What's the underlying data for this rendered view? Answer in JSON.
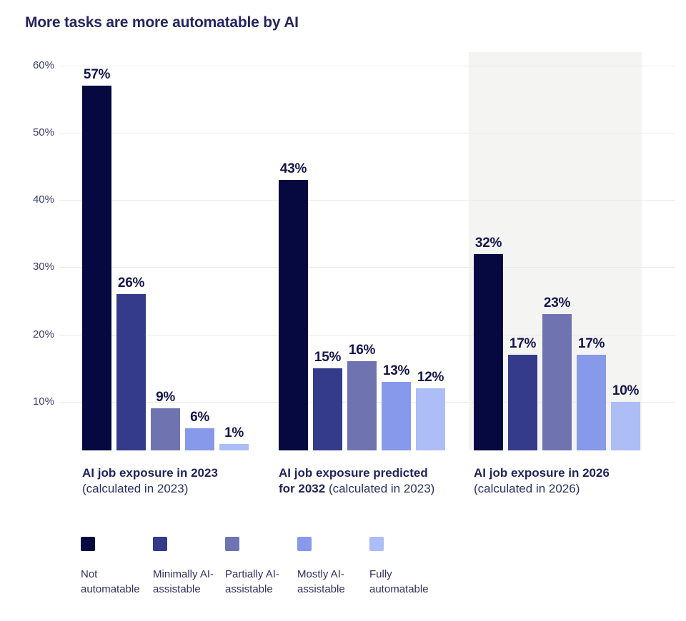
{
  "title": "More tasks are more automatable by AI",
  "colors": {
    "not_automatable": "#06093f",
    "minimally_ai_assistable": "#333b8a",
    "partially_ai_assistable": "#6f74b0",
    "mostly_ai_assistable": "#8699ea",
    "fully_automatable": "#adbdf5",
    "highlight_band": "#f4f4f2",
    "gridline": "#e9e9e7",
    "title_text": "#26265f",
    "value_label_text": "#15154b",
    "tick_text": "#3e3e66"
  },
  "chart_data": {
    "type": "bar",
    "title": "More tasks are more automatable by AI",
    "xlabel": "",
    "ylabel": "",
    "ylim": [
      0,
      62
    ],
    "grid": true,
    "legend_position": "bottom",
    "yticks": [
      "10%",
      "20%",
      "30%",
      "40%",
      "50%",
      "60%"
    ],
    "categories": [
      "Not automatable",
      "Minimally AI-assistable",
      "Partially AI-assistable",
      "Mostly AI-assistable",
      "Fully automatable"
    ],
    "series_colors": [
      "#06093f",
      "#333b8a",
      "#6f74b0",
      "#8699ea",
      "#adbdf5"
    ],
    "groups": [
      {
        "caption_lines": [
          {
            "bold": "AI job exposure in 2023",
            "regular": ""
          },
          {
            "bold": "",
            "regular": "(calculated in 2023)"
          }
        ],
        "values": [
          57,
          26,
          9,
          6,
          1
        ],
        "labels": [
          "57%",
          "26%",
          "9%",
          "6%",
          "1%"
        ],
        "highlighted": false
      },
      {
        "caption_lines": [
          {
            "bold": "AI job exposure predicted",
            "regular": ""
          },
          {
            "bold": "for 2032",
            "regular": "(calculated in 2023)"
          }
        ],
        "values": [
          43,
          15,
          16,
          13,
          12
        ],
        "labels": [
          "43%",
          "15%",
          "16%",
          "13%",
          "12%"
        ],
        "highlighted": false
      },
      {
        "caption_lines": [
          {
            "bold": "AI job exposure in 2026",
            "regular": ""
          },
          {
            "bold": "",
            "regular": "(calculated in 2026)"
          }
        ],
        "values": [
          32,
          17,
          23,
          17,
          10
        ],
        "labels": [
          "32%",
          "17%",
          "23%",
          "17%",
          "10%"
        ],
        "highlighted": true
      }
    ],
    "legend": [
      {
        "label": "Not automatable",
        "color": "#06093f"
      },
      {
        "label": "Minimally AI-assistable",
        "color": "#333b8a"
      },
      {
        "label": "Partially AI-assistable",
        "color": "#6f74b0"
      },
      {
        "label": "Mostly AI-assistable",
        "color": "#8699ea"
      },
      {
        "label": "Fully automatable",
        "color": "#adbdf5"
      }
    ]
  }
}
